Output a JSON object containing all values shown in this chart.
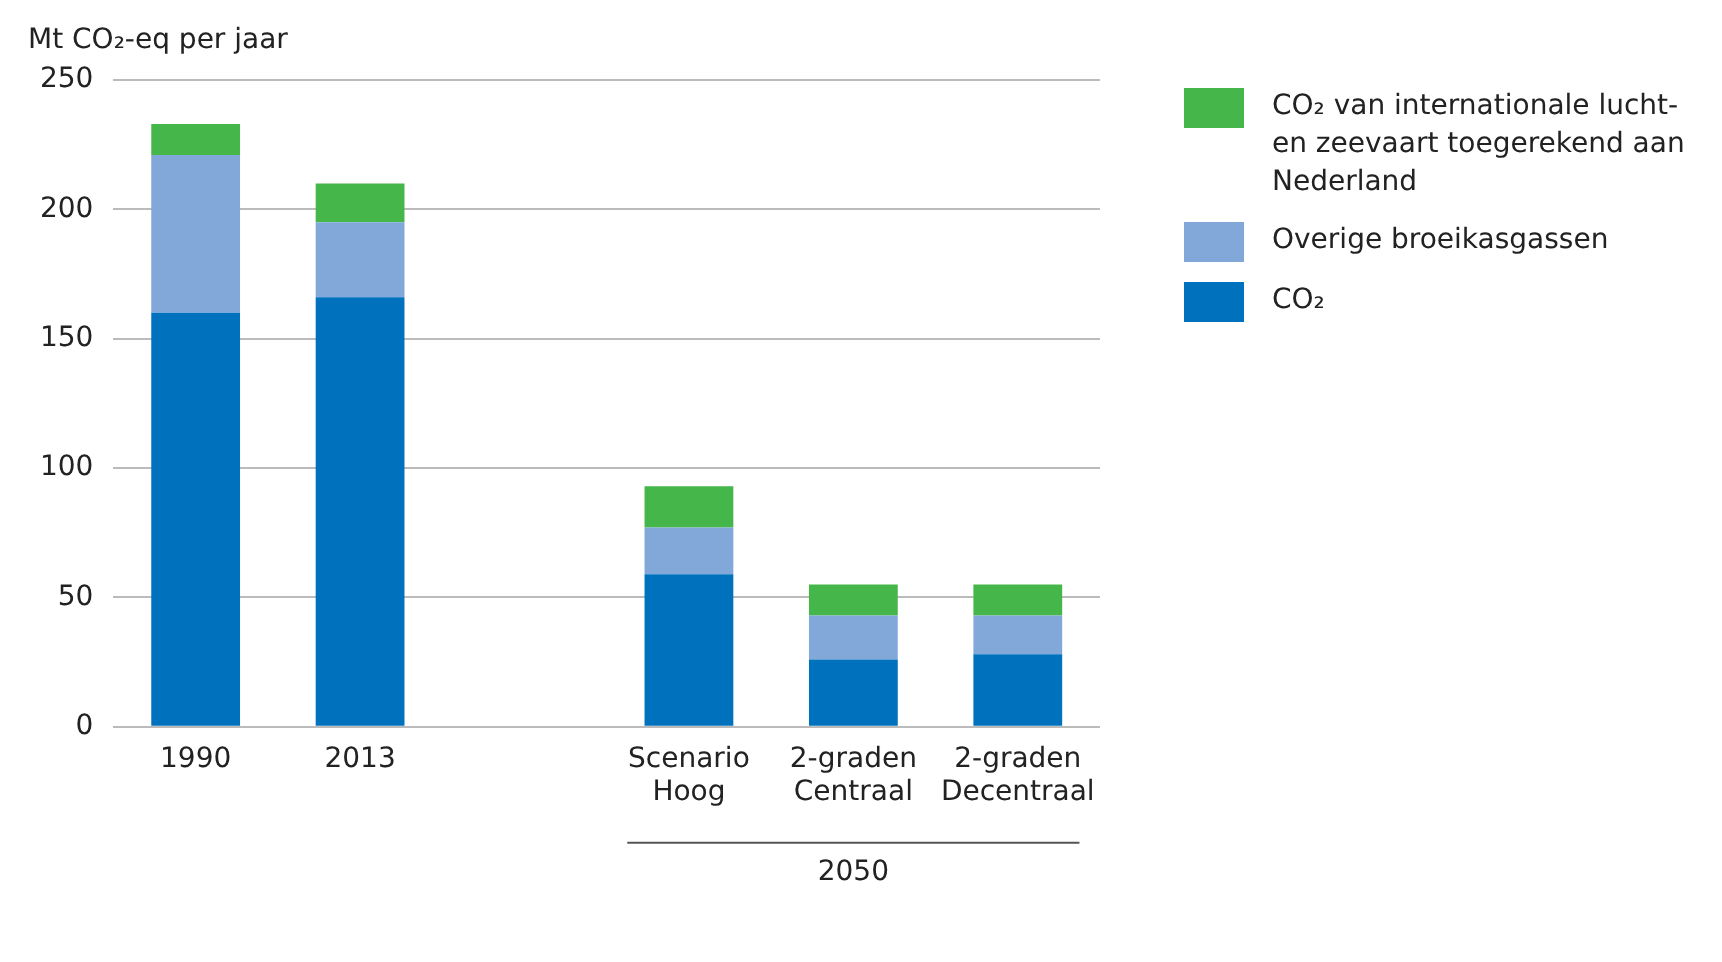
{
  "chart_data": {
    "type": "bar",
    "ylabel": "Mt CO₂-eq per jaar",
    "categories": [
      "1990",
      "2013",
      null,
      "Scenario Hoog",
      "2-graden Centraal",
      "2-graden Decentraal"
    ],
    "stacked": true,
    "series": [
      {
        "name": "CO₂",
        "color": "#0071bc",
        "values": [
          160,
          166,
          null,
          59,
          26,
          28
        ]
      },
      {
        "name": "Overige broeikasgassen",
        "color": "#82a8da",
        "values": [
          61,
          29,
          null,
          18,
          17,
          15
        ]
      },
      {
        "name": "CO₂ van internationale lucht- en zeevaart toegerekend aan Nederland",
        "color": "#45b649",
        "values": [
          12,
          15,
          null,
          16,
          12,
          12
        ]
      }
    ],
    "ylim": [
      0,
      250
    ],
    "yticks": [
      0,
      50,
      100,
      150,
      200,
      250
    ],
    "grid": "y",
    "legend": "right",
    "annotations": [
      "2050"
    ]
  }
}
